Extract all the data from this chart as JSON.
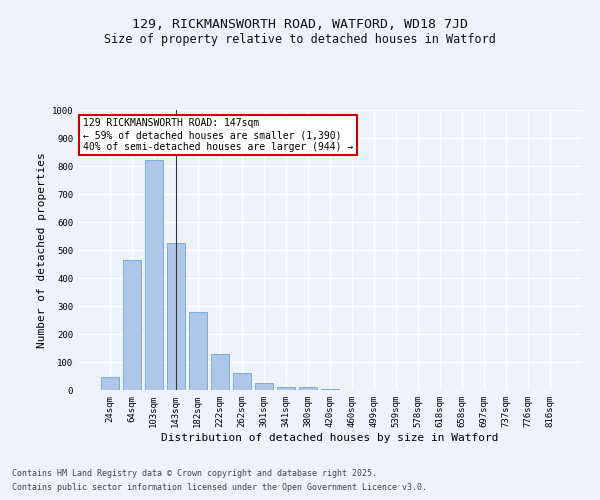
{
  "title_line1": "129, RICKMANSWORTH ROAD, WATFORD, WD18 7JD",
  "title_line2": "Size of property relative to detached houses in Watford",
  "xlabel": "Distribution of detached houses by size in Watford",
  "ylabel": "Number of detached properties",
  "categories": [
    "24sqm",
    "64sqm",
    "103sqm",
    "143sqm",
    "182sqm",
    "222sqm",
    "262sqm",
    "301sqm",
    "341sqm",
    "380sqm",
    "420sqm",
    "460sqm",
    "499sqm",
    "539sqm",
    "578sqm",
    "618sqm",
    "658sqm",
    "697sqm",
    "737sqm",
    "776sqm",
    "816sqm"
  ],
  "values": [
    47,
    466,
    820,
    525,
    280,
    128,
    60,
    25,
    10,
    10,
    3,
    0,
    0,
    0,
    0,
    0,
    0,
    0,
    0,
    0,
    0
  ],
  "bar_color": "#aec6e8",
  "bar_edge_color": "#5b9bd5",
  "annotation_text": "129 RICKMANSWORTH ROAD: 147sqm\n← 59% of detached houses are smaller (1,390)\n40% of semi-detached houses are larger (944) →",
  "annotation_box_color": "#ffffff",
  "annotation_box_edge_color": "#cc0000",
  "vline_x": 3,
  "ylim": [
    0,
    1000
  ],
  "yticks": [
    0,
    100,
    200,
    300,
    400,
    500,
    600,
    700,
    800,
    900,
    1000
  ],
  "bg_color": "#eef2f9",
  "plot_bg_color": "#eef2f9",
  "grid_color": "#ffffff",
  "footer_line1": "Contains HM Land Registry data © Crown copyright and database right 2025.",
  "footer_line2": "Contains public sector information licensed under the Open Government Licence v3.0.",
  "title_fontsize": 9.5,
  "subtitle_fontsize": 8.5,
  "axis_label_fontsize": 8,
  "tick_fontsize": 6.5,
  "annotation_fontsize": 7,
  "footer_fontsize": 6
}
